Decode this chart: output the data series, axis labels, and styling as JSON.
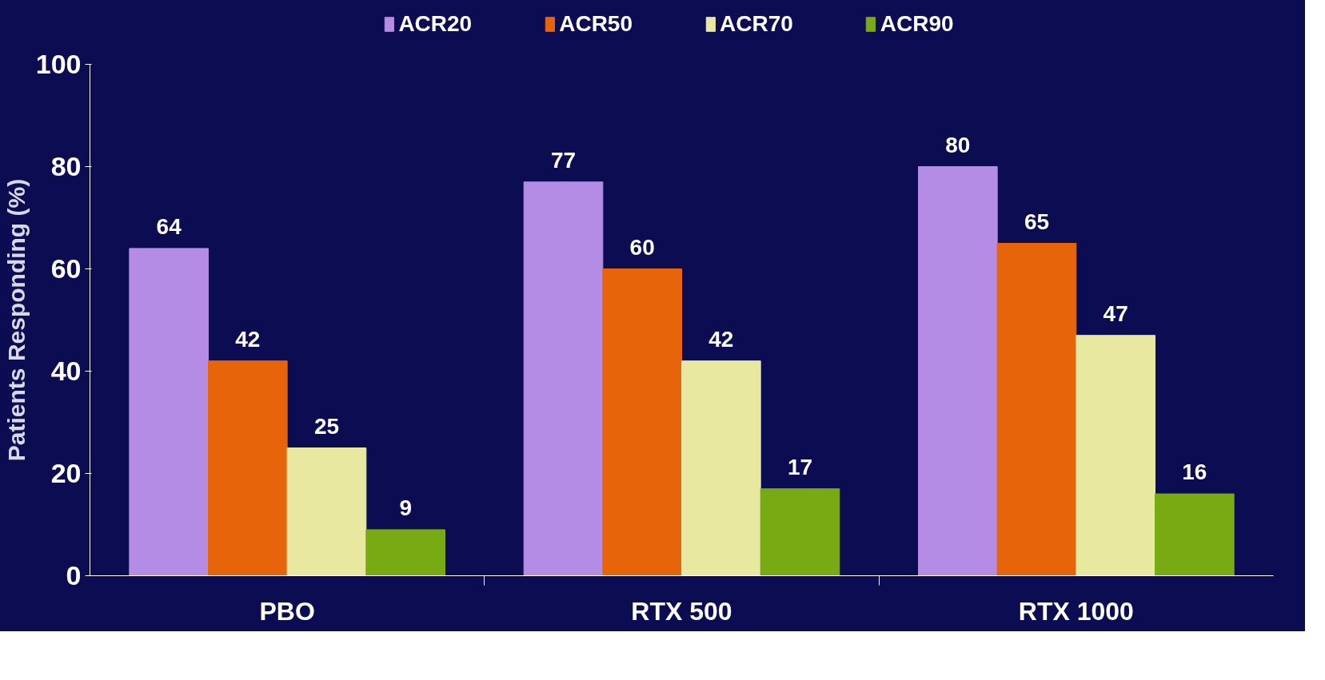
{
  "chart_data": {
    "type": "bar",
    "ylabel": "Patients Responding (%)",
    "categories": [
      "PBO",
      "RTX 500",
      "RTX 1000"
    ],
    "series": [
      {
        "name": "ACR20",
        "color": "#b48ce6",
        "values": [
          64,
          77,
          80
        ]
      },
      {
        "name": "ACR50",
        "color": "#e8640a",
        "values": [
          42,
          60,
          65
        ]
      },
      {
        "name": "ACR70",
        "color": "#e8e8a0",
        "values": [
          25,
          42,
          47
        ]
      },
      {
        "name": "ACR90",
        "color": "#78aa14",
        "values": [
          9,
          17,
          16
        ]
      }
    ],
    "ylim": [
      0,
      100
    ],
    "yticks": [
      0,
      20,
      40,
      60,
      80,
      100
    ],
    "grid": false,
    "legend": "top",
    "data_labels": true
  }
}
